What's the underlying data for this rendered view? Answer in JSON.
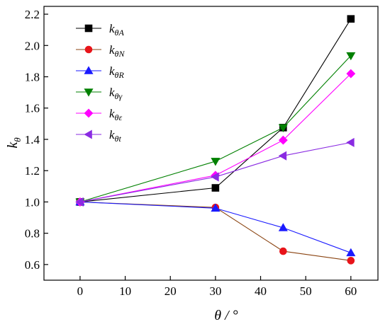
{
  "chart_data": {
    "type": "line",
    "title": "",
    "xlabel": "θ / °",
    "ylabel_main": "k",
    "ylabel_sub": "θ",
    "xlim": [
      -8,
      66
    ],
    "ylim": [
      0.5,
      2.25
    ],
    "x_ticks": [
      0,
      10,
      20,
      30,
      40,
      50,
      60
    ],
    "x_tick_labels": [
      "0",
      "10",
      "20",
      "30",
      "40",
      "50",
      "60"
    ],
    "y_ticks": [
      0.6,
      0.8,
      1.0,
      1.2,
      1.4,
      1.6,
      1.8,
      2.0,
      2.2
    ],
    "y_tick_labels": [
      "0.6",
      "0.8",
      "1.0",
      "1.2",
      "1.4",
      "1.6",
      "1.8",
      "2.0",
      "2.2"
    ],
    "grid": false,
    "legend_position": "top-left",
    "x": [
      0,
      30,
      45,
      60
    ],
    "series": [
      {
        "name_main": "k",
        "name_sub": "θA",
        "values": [
          1.0,
          1.09,
          1.475,
          2.17
        ],
        "color": "#000000",
        "marker": "square"
      },
      {
        "name_main": "k",
        "name_sub": "θN",
        "values": [
          1.0,
          0.965,
          0.685,
          0.625
        ],
        "color": "#e8141a",
        "line_color": "#8b4513",
        "marker": "circle"
      },
      {
        "name_main": "k",
        "name_sub": "θR",
        "values": [
          1.0,
          0.96,
          0.835,
          0.675
        ],
        "color": "#1a1aff",
        "marker": "triangle-up"
      },
      {
        "name_main": "k",
        "name_sub": "θγ",
        "values": [
          1.0,
          1.26,
          1.475,
          1.935
        ],
        "color": "#008000",
        "marker": "triangle-down"
      },
      {
        "name_main": "k",
        "name_sub": "θε",
        "values": [
          1.0,
          1.17,
          1.395,
          1.82
        ],
        "color": "#ff00ff",
        "marker": "diamond"
      },
      {
        "name_main": "k",
        "name_sub": "θt",
        "values": [
          1.0,
          1.16,
          1.295,
          1.38
        ],
        "color": "#8a2be2",
        "marker": "triangle-left"
      }
    ]
  }
}
